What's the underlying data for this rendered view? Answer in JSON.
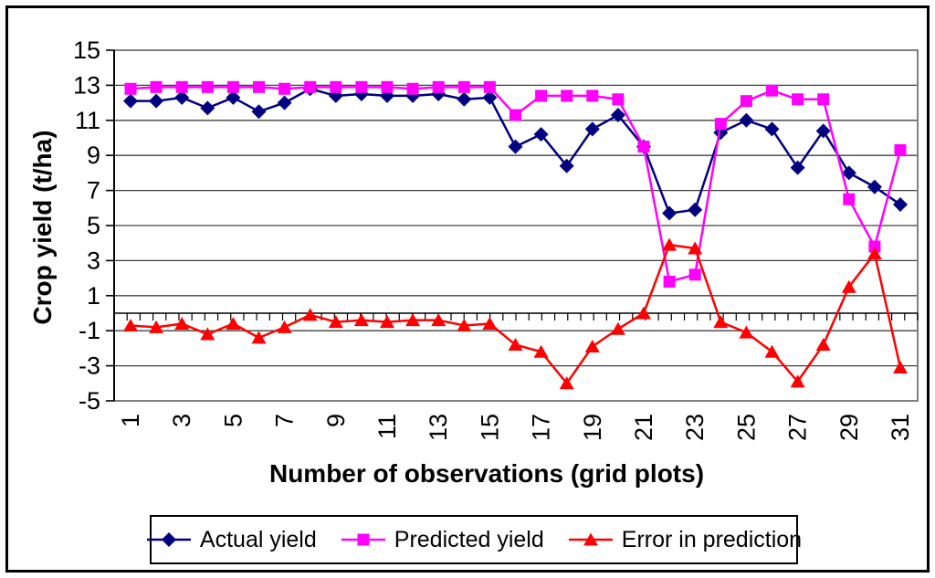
{
  "chart_data": {
    "type": "line",
    "title": "",
    "xlabel": "Number of observations (grid plots)",
    "ylabel": "Crop yield (t/ha)",
    "x": [
      1,
      2,
      3,
      4,
      5,
      6,
      7,
      8,
      9,
      10,
      11,
      12,
      13,
      14,
      15,
      16,
      17,
      18,
      19,
      20,
      21,
      22,
      23,
      24,
      25,
      26,
      27,
      28,
      29,
      30,
      31
    ],
    "x_tick_labels": [
      "1",
      "3",
      "5",
      "7",
      "9",
      "11",
      "13",
      "15",
      "17",
      "19",
      "21",
      "23",
      "25",
      "27",
      "29",
      "31"
    ],
    "ylim": [
      -5,
      15
    ],
    "y_ticks": [
      15,
      13,
      11,
      9,
      7,
      5,
      3,
      1,
      -1,
      -3,
      -5
    ],
    "grid": true,
    "legend_position": "bottom",
    "series": [
      {
        "name": "Actual yield",
        "color": "#000080",
        "marker": "diamond",
        "values": [
          12.1,
          12.1,
          12.3,
          11.7,
          12.3,
          11.5,
          12.0,
          12.8,
          12.4,
          12.5,
          12.4,
          12.4,
          12.5,
          12.2,
          12.3,
          9.5,
          10.2,
          8.4,
          10.5,
          11.3,
          9.5,
          5.7,
          5.9,
          10.3,
          11.0,
          10.5,
          8.3,
          10.4,
          8.0,
          7.2,
          6.2
        ]
      },
      {
        "name": "Predicted yield",
        "color": "#FF00FF",
        "marker": "square",
        "values": [
          12.8,
          12.9,
          12.9,
          12.9,
          12.9,
          12.9,
          12.8,
          12.9,
          12.9,
          12.9,
          12.9,
          12.8,
          12.9,
          12.9,
          12.9,
          11.3,
          12.4,
          12.4,
          12.4,
          12.2,
          9.5,
          1.8,
          2.2,
          10.8,
          12.1,
          12.7,
          12.2,
          12.2,
          6.5,
          3.8,
          9.3
        ]
      },
      {
        "name": "Error in prediction",
        "color": "#FF0000",
        "marker": "triangle",
        "values": [
          -0.7,
          -0.8,
          -0.6,
          -1.2,
          -0.6,
          -1.4,
          -0.8,
          -0.1,
          -0.5,
          -0.4,
          -0.5,
          -0.4,
          -0.4,
          -0.7,
          -0.6,
          -1.8,
          -2.2,
          -4.0,
          -1.9,
          -0.9,
          0.0,
          3.9,
          3.7,
          -0.5,
          -1.1,
          -2.2,
          -3.9,
          -1.8,
          1.5,
          3.4,
          -3.1
        ]
      }
    ]
  },
  "colors": {
    "actual": "#000080",
    "predicted": "#FF00FF",
    "error": "#FF0000",
    "gridline": "#404040",
    "plot_border": "#808080",
    "axis": "#000000"
  }
}
